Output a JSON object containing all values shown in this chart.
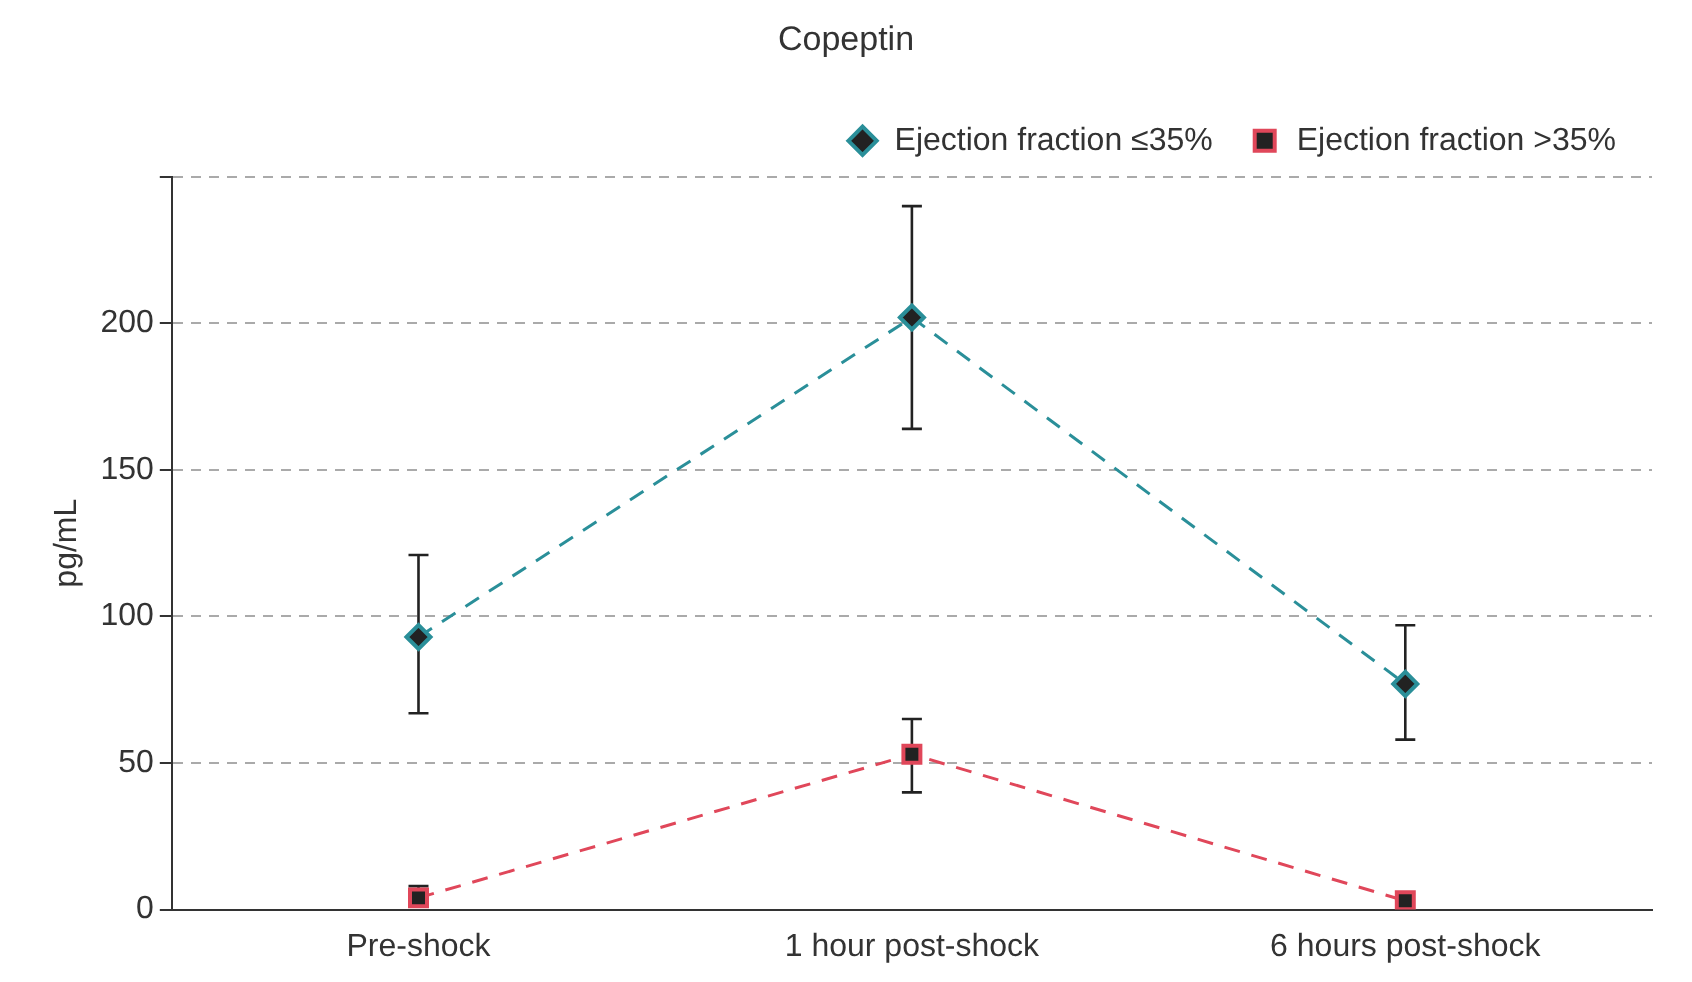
{
  "chart_data": {
    "type": "line",
    "title": "Copeptin",
    "ylabel": "pg/mL",
    "categories": [
      "Pre-shock",
      "1 hour post-shock",
      "6 hours post-shock"
    ],
    "series": [
      {
        "name": "Ejection fraction ≤35%",
        "color": "#2a8f99",
        "marker": "diamond",
        "values": [
          93,
          202,
          77
        ],
        "errors": [
          [
            67,
            121
          ],
          [
            164,
            240
          ],
          [
            58,
            97
          ]
        ]
      },
      {
        "name": "Ejection fraction >35%",
        "color": "#e0475a",
        "marker": "square",
        "values": [
          4,
          53,
          3
        ],
        "errors": [
          [
            2,
            8
          ],
          [
            40,
            65
          ],
          null
        ]
      }
    ],
    "ylim": [
      0,
      250
    ],
    "yticks": [
      0,
      50,
      100,
      150,
      200,
      {
        "value": 250,
        "label": null
      }
    ],
    "grid": "y",
    "legend": "top right",
    "line_style": "dashed"
  }
}
